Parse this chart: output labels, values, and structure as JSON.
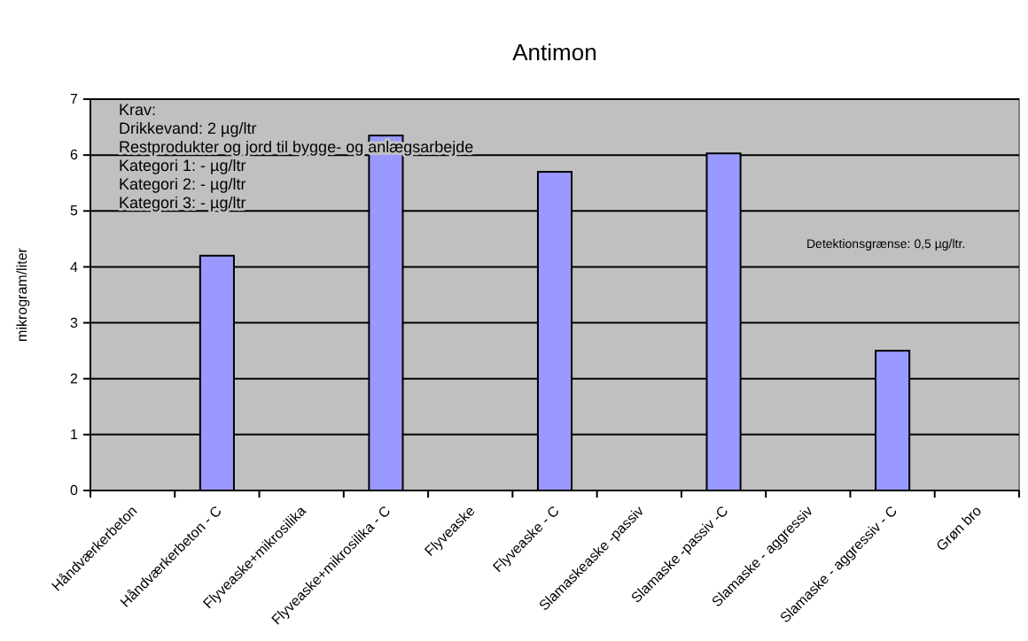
{
  "chart_data": {
    "type": "bar",
    "title": "Antimon",
    "ylabel": "mikrogram/liter",
    "categories": [
      "Håndværkerbeton",
      "Håndværkerbeton - C",
      "Flyveaske+mikrosilika",
      "Flyveaske+mikrosilika - C",
      "Flyveaske",
      "Flyveaske - C",
      "Slamaskeaske -passiv",
      "Slamaske -passiv -C",
      "Slamaske - aggressiv",
      "Slamaske - aggressiv - C",
      "Grøn bro"
    ],
    "values": [
      null,
      4.2,
      null,
      6.35,
      null,
      5.7,
      null,
      6.03,
      null,
      2.5,
      null
    ],
    "color": "#9999ff",
    "ylim": [
      0,
      7
    ],
    "yticks": [
      0,
      1,
      2,
      3,
      4,
      5,
      6,
      7
    ],
    "grid": "y",
    "annotations": [
      "Krav:",
      "Drikkevand: 2 µg/ltr",
      "Restprodukter og jord til bygge- og anlægsarbejde",
      "Kategori 1: - µg/ltr",
      "Kategori 2: - µg/ltr",
      "Kategori 3: - µg/ltr",
      "Detektionsgrænse: 0,5 µg/ltr."
    ]
  }
}
